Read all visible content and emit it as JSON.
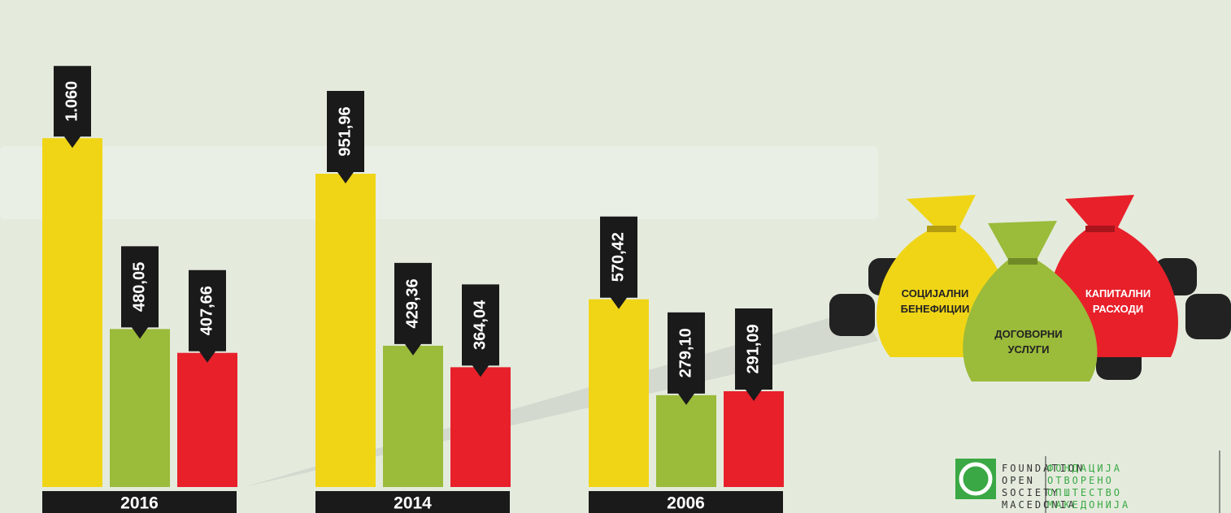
{
  "chart_data": {
    "type": "bar",
    "categories": [
      "2016",
      "2014",
      "2006"
    ],
    "series": [
      {
        "name": "СОЦИЈАЛНИ БЕНЕФИЦИИ",
        "color": "#f0d517",
        "values": [
          1060,
          951.96,
          570.42
        ],
        "value_labels": [
          "1.060",
          "951,96",
          "570,42"
        ]
      },
      {
        "name": "ДОГОВОРНИ УСЛУГИ",
        "color": "#9bbb3a",
        "values": [
          480.05,
          429.36,
          279.1
        ],
        "value_labels": [
          "480,05",
          "429,36",
          "279,10"
        ]
      },
      {
        "name": "КАПИТАЛНИ РАСХОДИ",
        "color": "#e8202a",
        "values": [
          407.66,
          364.04,
          291.09
        ],
        "value_labels": [
          "407,66",
          "364,04",
          "291,09"
        ]
      }
    ],
    "ylim": [
      0,
      1100
    ]
  },
  "logo": {
    "english": [
      "FOUNDATION",
      "OPEN",
      "SOCIETY",
      "MACEDONIA"
    ],
    "macedonian": [
      "ФОНДАЦИЈА",
      "ОТВОРЕНО",
      "ОПШТЕСТВО",
      "МАКЕДОНИЈА"
    ]
  }
}
